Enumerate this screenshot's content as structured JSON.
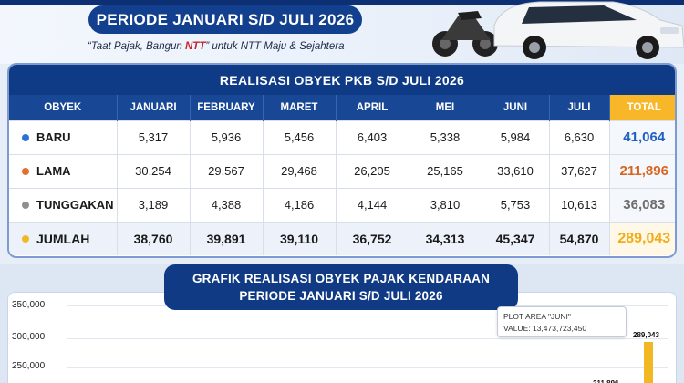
{
  "header": {
    "title": "PERIODE JANUARI S/D JULI 2026",
    "tagline_prefix": "“Taat Pajak, Bangun ",
    "tagline_highlight": "NTT",
    "tagline_suffix": "” untuk NTT Maju & Sejahtera"
  },
  "table": {
    "title": "REALISASI OBYEK PKB S/D JULI 2026",
    "columns": [
      "OBYEK",
      "JANUARI",
      "FEBRUARY",
      "MARET",
      "APRIL",
      "MEI",
      "JUNI",
      "JULI",
      "TOTAL"
    ],
    "rows": [
      {
        "label": "BARU",
        "dot_color": "#2f6fd6",
        "values": [
          "5,317",
          "5,936",
          "5,456",
          "6,403",
          "5,338",
          "5,984",
          "6,630"
        ],
        "total": "41,064",
        "total_color": "#1f5fc4"
      },
      {
        "label": "LAMA",
        "dot_color": "#e2702b",
        "values": [
          "30,254",
          "29,567",
          "29,468",
          "26,205",
          "25,165",
          "33,610",
          "37,627"
        ],
        "total": "211,896",
        "total_color": "#d8641f"
      },
      {
        "label": "TUNGGAKAN",
        "dot_color": "#8f8f8f",
        "values": [
          "3,189",
          "4,388",
          "4,186",
          "4,144",
          "3,810",
          "5,753",
          "10,613"
        ],
        "total": "36,083",
        "total_color": "#6d6d6d"
      },
      {
        "label": "JUMLAH",
        "dot_color": "#f2b824",
        "values": [
          "38,760",
          "39,891",
          "39,110",
          "36,752",
          "34,313",
          "45,347",
          "54,870"
        ],
        "total": "289,043",
        "total_color": "#f0ad18"
      }
    ]
  },
  "graph": {
    "title_line1": "GRAFIK REALISASI OBYEK PAJAK KENDARAAN",
    "title_line2": "PERIODE JANUARI S/D JULI 2026",
    "tooltip_line1": "PLOT AREA \"JUNI\"",
    "tooltip_line2": "VALUE: 13,473,723,450"
  },
  "chart_data": {
    "type": "bar",
    "title": "GRAFIK REALISASI OBYEK PAJAK KENDARAAN PERIODE JANUARI S/D JULI 2026",
    "yticks": [
      "350,000",
      "300,000",
      "250,000"
    ],
    "ylim": [
      250000,
      350000
    ],
    "series": [
      {
        "name": "LAMA",
        "value": 211896,
        "label": "211,896",
        "color": "#e2702b"
      },
      {
        "name": "JUMLAH",
        "value": 289043,
        "label": "289,043",
        "color": "#f2b824"
      }
    ]
  }
}
